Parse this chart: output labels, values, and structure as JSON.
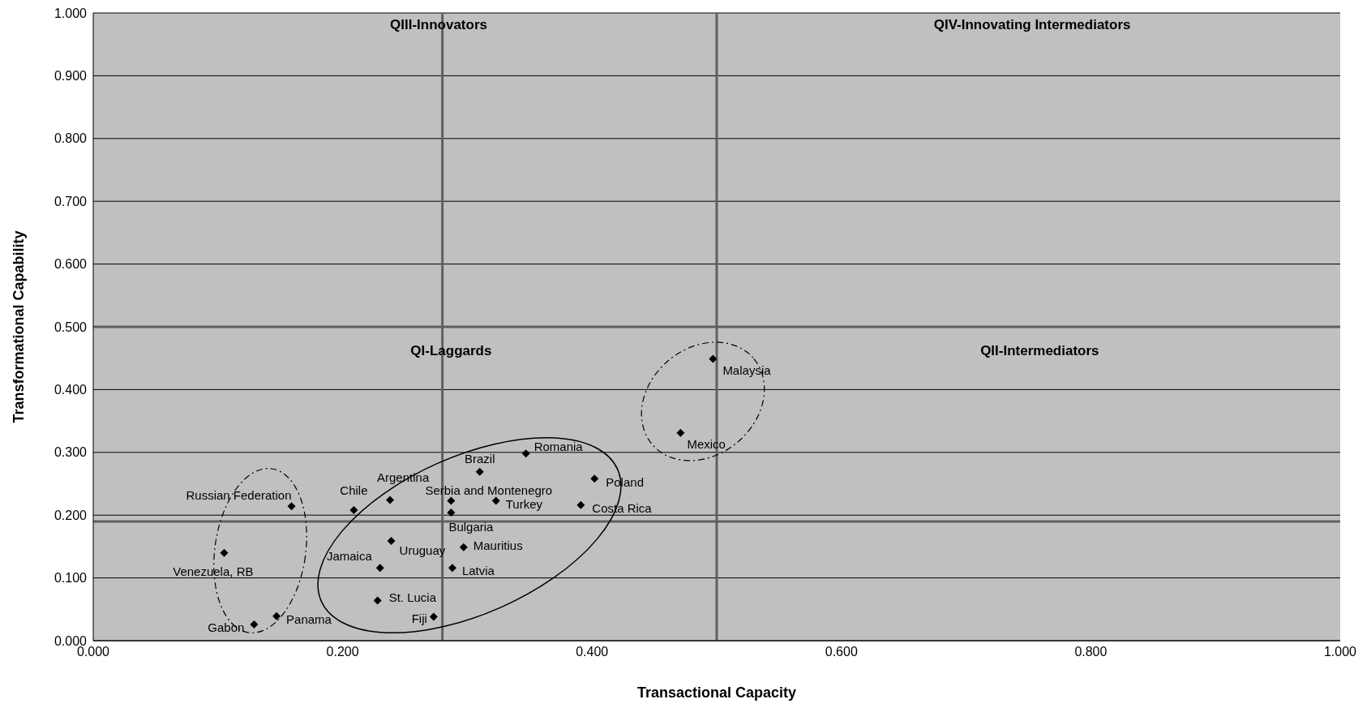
{
  "chart_data": {
    "type": "scatter",
    "xlabel": "Transactional Capacity",
    "ylabel": "Transformational Capability",
    "xlim": [
      0,
      1
    ],
    "ylim": [
      0,
      1
    ],
    "xticks": [
      {
        "value": 0,
        "label": "0.000"
      },
      {
        "value": 0.2,
        "label": "0.200"
      },
      {
        "value": 0.4,
        "label": "0.400"
      },
      {
        "value": 0.6,
        "label": "0.600"
      },
      {
        "value": 0.8,
        "label": "0.800"
      },
      {
        "value": 1,
        "label": "1.000"
      }
    ],
    "yticks": [
      {
        "value": 0,
        "label": "0.000"
      },
      {
        "value": 0.1,
        "label": "0.100"
      },
      {
        "value": 0.2,
        "label": "0.200"
      },
      {
        "value": 0.3,
        "label": "0.300"
      },
      {
        "value": 0.4,
        "label": "0.400"
      },
      {
        "value": 0.5,
        "label": "0.500"
      },
      {
        "value": 0.6,
        "label": "0.600"
      },
      {
        "value": 0.7,
        "label": "0.700"
      },
      {
        "value": 0.8,
        "label": "0.800"
      },
      {
        "value": 0.9,
        "label": "0.900"
      },
      {
        "value": 1,
        "label": "1.000"
      }
    ],
    "grid": "y",
    "marker": "diamond",
    "series": [
      {
        "name": "Russian Federation",
        "color": "#000000",
        "x": [
          0.159
        ],
        "values": [
          0.214
        ]
      },
      {
        "name": "Venezuela, RB",
        "color": "#000000",
        "x": [
          0.105
        ],
        "values": [
          0.14
        ]
      },
      {
        "name": "Gabon",
        "color": "#000000",
        "x": [
          0.129
        ],
        "values": [
          0.026
        ]
      },
      {
        "name": "Panama",
        "color": "#000000",
        "x": [
          0.147
        ],
        "values": [
          0.039
        ]
      },
      {
        "name": "Chile",
        "color": "#000000",
        "x": [
          0.209
        ],
        "values": [
          0.208
        ]
      },
      {
        "name": "Argentina",
        "color": "#000000",
        "x": [
          0.238
        ],
        "values": [
          0.224
        ]
      },
      {
        "name": "Serbia and Montenegro",
        "color": "#000000",
        "x": [
          0.287
        ],
        "values": [
          0.223
        ]
      },
      {
        "name": "Bulgaria",
        "color": "#000000",
        "x": [
          0.287
        ],
        "values": [
          0.204
        ]
      },
      {
        "name": "Turkey",
        "color": "#000000",
        "x": [
          0.323
        ],
        "values": [
          0.223
        ]
      },
      {
        "name": "Brazil",
        "color": "#000000",
        "x": [
          0.31
        ],
        "values": [
          0.269
        ]
      },
      {
        "name": "Romania",
        "color": "#000000",
        "x": [
          0.347
        ],
        "values": [
          0.298
        ]
      },
      {
        "name": "Poland",
        "color": "#000000",
        "x": [
          0.402
        ],
        "values": [
          0.258
        ]
      },
      {
        "name": "Costa Rica",
        "color": "#000000",
        "x": [
          0.391
        ],
        "values": [
          0.216
        ]
      },
      {
        "name": "Uruguay",
        "color": "#000000",
        "x": [
          0.239
        ],
        "values": [
          0.159
        ]
      },
      {
        "name": "Mauritius",
        "color": "#000000",
        "x": [
          0.297
        ],
        "values": [
          0.149
        ]
      },
      {
        "name": "Jamaica",
        "color": "#000000",
        "x": [
          0.23
        ],
        "values": [
          0.116
        ]
      },
      {
        "name": "Latvia",
        "color": "#000000",
        "x": [
          0.288
        ],
        "values": [
          0.116
        ]
      },
      {
        "name": "St. Lucia",
        "color": "#000000",
        "x": [
          0.228
        ],
        "values": [
          0.064
        ]
      },
      {
        "name": "Fiji",
        "color": "#000000",
        "x": [
          0.273
        ],
        "values": [
          0.038
        ]
      },
      {
        "name": "Mexico",
        "color": "#000000",
        "x": [
          0.471
        ],
        "values": [
          0.331
        ]
      },
      {
        "name": "Malaysia",
        "color": "#000000",
        "x": [
          0.497
        ],
        "values": [
          0.449
        ]
      }
    ],
    "ref_lines": [
      {
        "axis": "x",
        "value": 0.28,
        "color": "#606060"
      },
      {
        "axis": "x",
        "value": 0.5,
        "color": "#606060"
      },
      {
        "axis": "y",
        "value": 0.5,
        "color": "#606060"
      },
      {
        "axis": "y",
        "value": 0.19,
        "color": "#606060"
      }
    ],
    "annotations": [
      "QIII-Innovators",
      "QIV-Innovating Intermediators",
      "QI-Laggards",
      "QII-Intermediators"
    ]
  }
}
